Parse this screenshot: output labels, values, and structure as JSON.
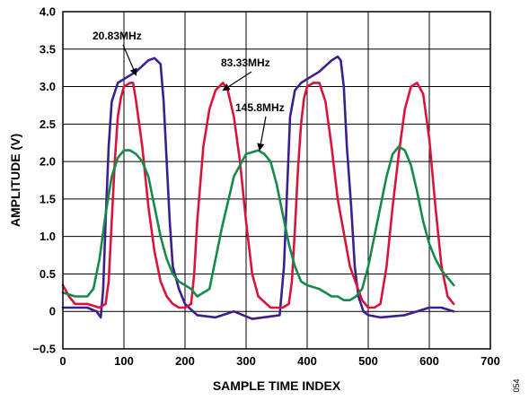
{
  "chart_data": {
    "type": "line",
    "title": "",
    "xlabel": "SAMPLE TIME INDEX",
    "ylabel": "AMPLITUDE (V)",
    "xlim": [
      0,
      700
    ],
    "ylim": [
      -0.5,
      4.0
    ],
    "x_ticks": [
      "0",
      "100",
      "200",
      "300",
      "400",
      "500",
      "600",
      "700"
    ],
    "y_ticks": [
      "−0.5",
      "0",
      "0.5",
      "1.0",
      "1.5",
      "2.0",
      "2.5",
      "3.0",
      "3.5",
      "4.0"
    ],
    "grid": true,
    "figure_id": "054",
    "annotations": [
      {
        "text": "20.83MHz",
        "points_to": [
          120,
          3.15
        ]
      },
      {
        "text": "83.33MHz",
        "points_to": [
          262,
          2.95
        ]
      },
      {
        "text": "145.8MHz",
        "points_to": [
          322,
          2.15
        ]
      }
    ],
    "series": [
      {
        "label": "20.83MHz",
        "color": "#3d1e8f",
        "x": [
          0,
          20,
          40,
          55,
          62,
          66,
          70,
          75,
          80,
          90,
          100,
          120,
          140,
          150,
          160,
          165,
          170,
          175,
          180,
          190,
          200,
          220,
          250,
          280,
          310,
          355,
          362,
          367,
          372,
          380,
          390,
          400,
          420,
          440,
          450,
          455,
          460,
          465,
          472,
          478,
          484,
          492,
          500,
          520,
          560,
          600,
          620,
          640
        ],
        "y": [
          0.05,
          0.05,
          0.05,
          0.0,
          -0.08,
          0.3,
          1.2,
          2.2,
          2.8,
          3.05,
          3.1,
          3.2,
          3.35,
          3.38,
          3.3,
          2.8,
          2.0,
          1.2,
          0.6,
          0.3,
          0.1,
          -0.05,
          -0.08,
          0.0,
          -0.1,
          -0.05,
          0.6,
          1.6,
          2.6,
          2.95,
          3.05,
          3.1,
          3.2,
          3.35,
          3.4,
          3.35,
          3.0,
          2.2,
          1.4,
          0.6,
          0.2,
          0.0,
          -0.05,
          -0.08,
          -0.05,
          0.05,
          0.05,
          0.0
        ]
      },
      {
        "label": "83.33MHz",
        "color": "#d9143c",
        "x": [
          0,
          10,
          20,
          40,
          60,
          70,
          75,
          80,
          85,
          90,
          95,
          100,
          110,
          115,
          120,
          130,
          140,
          150,
          160,
          170,
          180,
          190,
          200,
          210,
          215,
          220,
          225,
          230,
          240,
          250,
          262,
          270,
          280,
          290,
          300,
          310,
          320,
          340,
          360,
          370,
          375,
          380,
          385,
          390,
          395,
          400,
          410,
          420,
          430,
          440,
          450,
          470,
          490,
          500,
          510,
          520,
          530,
          540,
          550,
          560,
          570,
          580,
          590,
          600,
          610,
          620,
          630,
          640
        ],
        "y": [
          0.35,
          0.2,
          0.1,
          0.1,
          0.05,
          0.1,
          0.4,
          1.2,
          2.0,
          2.6,
          2.85,
          3.0,
          3.05,
          3.05,
          2.8,
          2.2,
          1.4,
          0.8,
          0.4,
          0.2,
          0.1,
          0.05,
          0.05,
          0.1,
          0.5,
          1.2,
          1.7,
          2.2,
          2.7,
          2.95,
          3.05,
          2.95,
          2.6,
          2.0,
          1.2,
          0.5,
          0.2,
          0.05,
          0.05,
          0.1,
          0.4,
          1.1,
          1.9,
          2.5,
          2.85,
          3.0,
          3.05,
          3.05,
          2.8,
          2.2,
          1.5,
          0.6,
          0.15,
          0.05,
          0.05,
          0.1,
          0.6,
          1.4,
          2.1,
          2.7,
          3.0,
          3.05,
          2.9,
          2.3,
          1.4,
          0.6,
          0.2,
          0.1
        ]
      },
      {
        "label": "145.8MHz",
        "color": "#158a4a",
        "x": [
          0,
          20,
          40,
          50,
          60,
          70,
          80,
          90,
          100,
          110,
          120,
          130,
          140,
          150,
          160,
          170,
          180,
          190,
          200,
          210,
          220,
          240,
          260,
          280,
          300,
          320,
          330,
          340,
          350,
          360,
          370,
          380,
          390,
          400,
          420,
          430,
          440,
          450,
          460,
          470,
          480,
          490,
          500,
          510,
          520,
          530,
          540,
          550,
          560,
          570,
          580,
          590,
          600,
          610,
          620,
          630,
          640
        ],
        "y": [
          0.25,
          0.2,
          0.2,
          0.3,
          0.7,
          1.3,
          1.8,
          2.05,
          2.15,
          2.15,
          2.1,
          2.0,
          1.8,
          1.4,
          1.0,
          0.7,
          0.5,
          0.4,
          0.35,
          0.3,
          0.2,
          0.3,
          1.1,
          1.8,
          2.1,
          2.15,
          2.1,
          2.0,
          1.7,
          1.3,
          0.9,
          0.6,
          0.4,
          0.35,
          0.3,
          0.25,
          0.2,
          0.2,
          0.15,
          0.15,
          0.2,
          0.3,
          0.6,
          1.0,
          1.4,
          1.8,
          2.1,
          2.2,
          2.15,
          1.95,
          1.6,
          1.2,
          0.9,
          0.7,
          0.55,
          0.45,
          0.35
        ]
      }
    ]
  }
}
